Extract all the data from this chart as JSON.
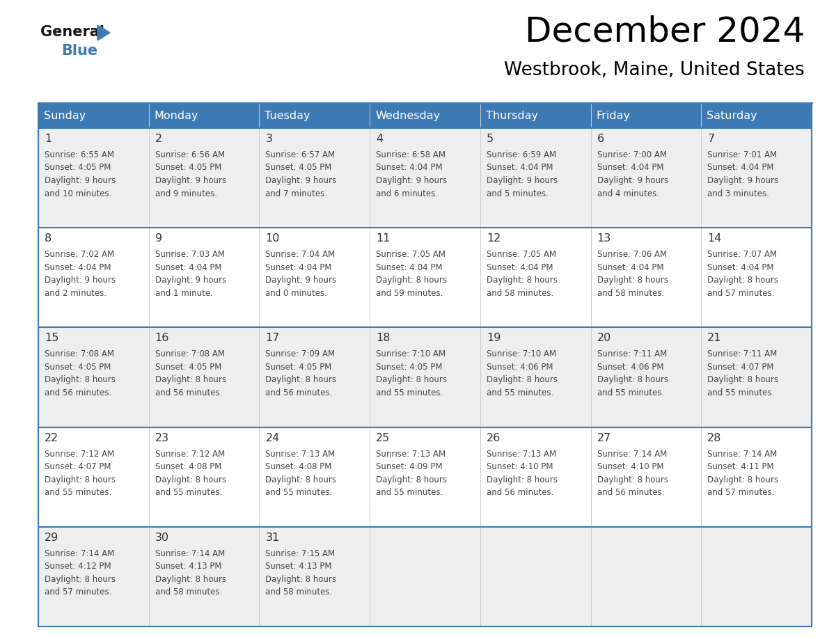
{
  "title": "December 2024",
  "subtitle": "Westbrook, Maine, United States",
  "header_color": "#3d7ab5",
  "header_text_color": "#ffffff",
  "cell_bg_odd": "#eeeeee",
  "cell_bg_even": "#ffffff",
  "day_number_color": "#333333",
  "cell_text_color": "#444444",
  "border_color": "#3d7ab5",
  "days_of_week": [
    "Sunday",
    "Monday",
    "Tuesday",
    "Wednesday",
    "Thursday",
    "Friday",
    "Saturday"
  ],
  "weeks": [
    [
      {
        "day": 1,
        "sunrise": "6:55 AM",
        "sunset": "4:05 PM",
        "daylight_line1": "9 hours",
        "daylight_line2": "and 10 minutes."
      },
      {
        "day": 2,
        "sunrise": "6:56 AM",
        "sunset": "4:05 PM",
        "daylight_line1": "9 hours",
        "daylight_line2": "and 9 minutes."
      },
      {
        "day": 3,
        "sunrise": "6:57 AM",
        "sunset": "4:05 PM",
        "daylight_line1": "9 hours",
        "daylight_line2": "and 7 minutes."
      },
      {
        "day": 4,
        "sunrise": "6:58 AM",
        "sunset": "4:04 PM",
        "daylight_line1": "9 hours",
        "daylight_line2": "and 6 minutes."
      },
      {
        "day": 5,
        "sunrise": "6:59 AM",
        "sunset": "4:04 PM",
        "daylight_line1": "9 hours",
        "daylight_line2": "and 5 minutes."
      },
      {
        "day": 6,
        "sunrise": "7:00 AM",
        "sunset": "4:04 PM",
        "daylight_line1": "9 hours",
        "daylight_line2": "and 4 minutes."
      },
      {
        "day": 7,
        "sunrise": "7:01 AM",
        "sunset": "4:04 PM",
        "daylight_line1": "9 hours",
        "daylight_line2": "and 3 minutes."
      }
    ],
    [
      {
        "day": 8,
        "sunrise": "7:02 AM",
        "sunset": "4:04 PM",
        "daylight_line1": "9 hours",
        "daylight_line2": "and 2 minutes."
      },
      {
        "day": 9,
        "sunrise": "7:03 AM",
        "sunset": "4:04 PM",
        "daylight_line1": "9 hours",
        "daylight_line2": "and 1 minute."
      },
      {
        "day": 10,
        "sunrise": "7:04 AM",
        "sunset": "4:04 PM",
        "daylight_line1": "9 hours",
        "daylight_line2": "and 0 minutes."
      },
      {
        "day": 11,
        "sunrise": "7:05 AM",
        "sunset": "4:04 PM",
        "daylight_line1": "8 hours",
        "daylight_line2": "and 59 minutes."
      },
      {
        "day": 12,
        "sunrise": "7:05 AM",
        "sunset": "4:04 PM",
        "daylight_line1": "8 hours",
        "daylight_line2": "and 58 minutes."
      },
      {
        "day": 13,
        "sunrise": "7:06 AM",
        "sunset": "4:04 PM",
        "daylight_line1": "8 hours",
        "daylight_line2": "and 58 minutes."
      },
      {
        "day": 14,
        "sunrise": "7:07 AM",
        "sunset": "4:04 PM",
        "daylight_line1": "8 hours",
        "daylight_line2": "and 57 minutes."
      }
    ],
    [
      {
        "day": 15,
        "sunrise": "7:08 AM",
        "sunset": "4:05 PM",
        "daylight_line1": "8 hours",
        "daylight_line2": "and 56 minutes."
      },
      {
        "day": 16,
        "sunrise": "7:08 AM",
        "sunset": "4:05 PM",
        "daylight_line1": "8 hours",
        "daylight_line2": "and 56 minutes."
      },
      {
        "day": 17,
        "sunrise": "7:09 AM",
        "sunset": "4:05 PM",
        "daylight_line1": "8 hours",
        "daylight_line2": "and 56 minutes."
      },
      {
        "day": 18,
        "sunrise": "7:10 AM",
        "sunset": "4:05 PM",
        "daylight_line1": "8 hours",
        "daylight_line2": "and 55 minutes."
      },
      {
        "day": 19,
        "sunrise": "7:10 AM",
        "sunset": "4:06 PM",
        "daylight_line1": "8 hours",
        "daylight_line2": "and 55 minutes."
      },
      {
        "day": 20,
        "sunrise": "7:11 AM",
        "sunset": "4:06 PM",
        "daylight_line1": "8 hours",
        "daylight_line2": "and 55 minutes."
      },
      {
        "day": 21,
        "sunrise": "7:11 AM",
        "sunset": "4:07 PM",
        "daylight_line1": "8 hours",
        "daylight_line2": "and 55 minutes."
      }
    ],
    [
      {
        "day": 22,
        "sunrise": "7:12 AM",
        "sunset": "4:07 PM",
        "daylight_line1": "8 hours",
        "daylight_line2": "and 55 minutes."
      },
      {
        "day": 23,
        "sunrise": "7:12 AM",
        "sunset": "4:08 PM",
        "daylight_line1": "8 hours",
        "daylight_line2": "and 55 minutes."
      },
      {
        "day": 24,
        "sunrise": "7:13 AM",
        "sunset": "4:08 PM",
        "daylight_line1": "8 hours",
        "daylight_line2": "and 55 minutes."
      },
      {
        "day": 25,
        "sunrise": "7:13 AM",
        "sunset": "4:09 PM",
        "daylight_line1": "8 hours",
        "daylight_line2": "and 55 minutes."
      },
      {
        "day": 26,
        "sunrise": "7:13 AM",
        "sunset": "4:10 PM",
        "daylight_line1": "8 hours",
        "daylight_line2": "and 56 minutes."
      },
      {
        "day": 27,
        "sunrise": "7:14 AM",
        "sunset": "4:10 PM",
        "daylight_line1": "8 hours",
        "daylight_line2": "and 56 minutes."
      },
      {
        "day": 28,
        "sunrise": "7:14 AM",
        "sunset": "4:11 PM",
        "daylight_line1": "8 hours",
        "daylight_line2": "and 57 minutes."
      }
    ],
    [
      {
        "day": 29,
        "sunrise": "7:14 AM",
        "sunset": "4:12 PM",
        "daylight_line1": "8 hours",
        "daylight_line2": "and 57 minutes."
      },
      {
        "day": 30,
        "sunrise": "7:14 AM",
        "sunset": "4:13 PM",
        "daylight_line1": "8 hours",
        "daylight_line2": "and 58 minutes."
      },
      {
        "day": 31,
        "sunrise": "7:15 AM",
        "sunset": "4:13 PM",
        "daylight_line1": "8 hours",
        "daylight_line2": "and 58 minutes."
      },
      null,
      null,
      null,
      null
    ]
  ]
}
